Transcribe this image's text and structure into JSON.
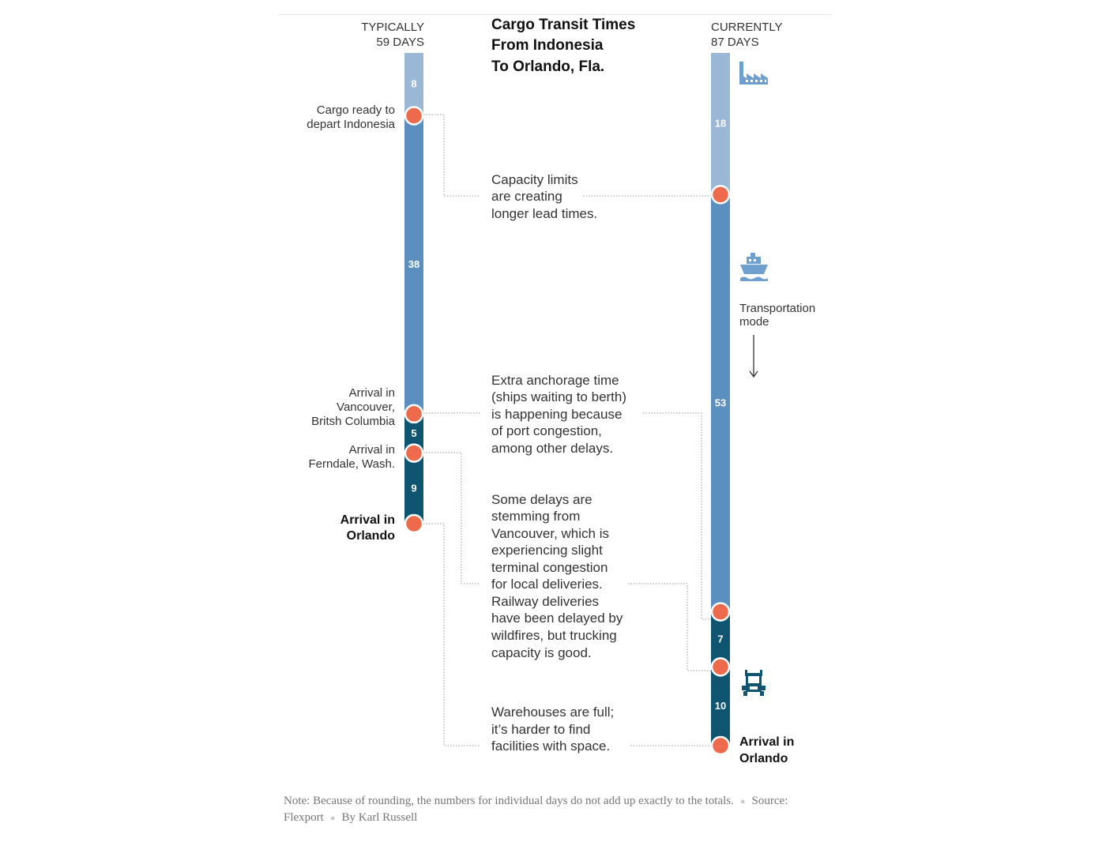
{
  "title": [
    "Cargo Transit Times",
    "From Indonesia",
    "To Orlando, Fla."
  ],
  "columns": {
    "typical": {
      "header": [
        "TYPICALLY",
        "59 DAYS"
      ]
    },
    "current": {
      "header": [
        "CURRENTLY",
        "87 DAYS"
      ]
    }
  },
  "colors": {
    "pre_departure": "#9bb7d6",
    "ocean": "#5b8fc0",
    "land": "#0f5471",
    "milestone_dot": "#ee6a4d",
    "icon": "#6f9fcf"
  },
  "chart_data": {
    "type": "stacked-timeline",
    "unit": "days",
    "series": [
      {
        "name": "TYPICALLY",
        "total": 59,
        "segments": [
          {
            "phase": "pre_departure",
            "days": 8
          },
          {
            "phase": "ocean",
            "days": 38
          },
          {
            "phase": "land",
            "days": 5
          },
          {
            "phase": "land",
            "days": 9
          }
        ]
      },
      {
        "name": "CURRENTLY",
        "total": 87,
        "segments": [
          {
            "phase": "pre_departure",
            "days": 18
          },
          {
            "phase": "ocean",
            "days": 53
          },
          {
            "phase": "land",
            "days": 7
          },
          {
            "phase": "land",
            "days": 10
          }
        ]
      }
    ]
  },
  "milestones_typical": [
    [
      "Cargo ready to",
      "depart Indonesia"
    ],
    [
      "Arrival in",
      "Vancouver,",
      "Britsh Columbia"
    ],
    [
      "Arrival in",
      "Ferndale, Wash."
    ],
    [
      "Arrival in",
      "Orlando"
    ]
  ],
  "milestone_current_final": [
    "Arrival in",
    "Orlando"
  ],
  "notes": [
    [
      "Capacity limits",
      "are creating",
      "longer lead times."
    ],
    [
      "Extra anchorage time",
      "(ships waiting to berth)",
      "is happening because",
      "of port congestion,",
      "among other delays."
    ],
    [
      "Some delays are",
      "stemming from",
      "Vancouver, which is",
      "experiencing slight",
      "terminal congestion",
      "for local deliveries.",
      "Railway deliveries",
      "have been delayed by",
      "wildfires, but trucking",
      "capacity is good."
    ],
    [
      "Warehouses are full;",
      "it’s harder to find",
      "facilities with space."
    ]
  ],
  "transport_label": [
    "Transportation",
    "mode"
  ],
  "icons": [
    "factory-icon",
    "ship-icon",
    "truck-icon"
  ],
  "footer": {
    "note": "Note: Because of rounding, the numbers for individual days do not add up exactly to the totals.",
    "source": "Source: Flexport",
    "byline": "By Karl Russell"
  }
}
